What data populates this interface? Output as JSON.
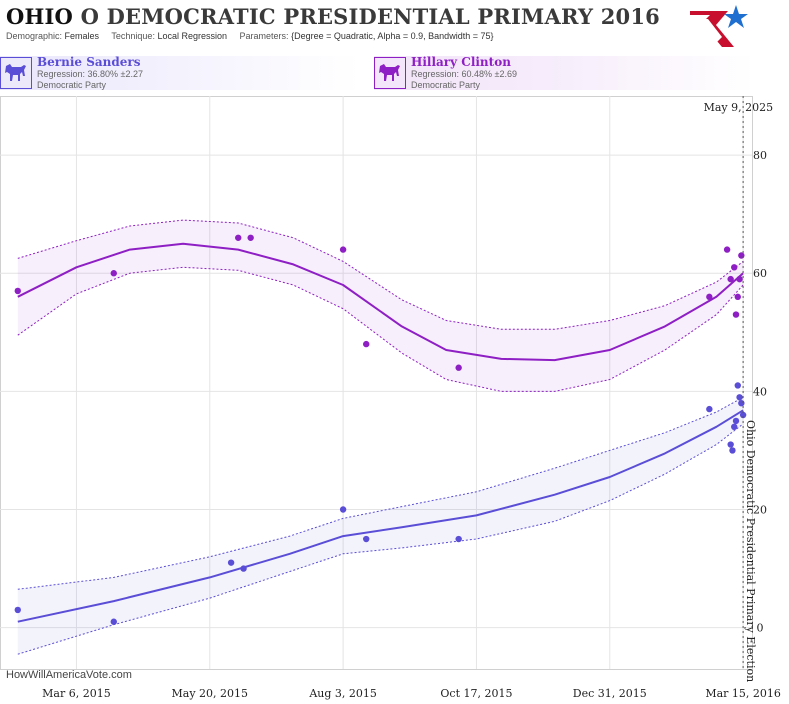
{
  "header": {
    "state": "OHIO",
    "title_rest": "O DEMOCRATIC PRESIDENTIAL PRIMARY 2016",
    "demographic_label": "Demographic:",
    "demographic_value": "Females",
    "technique_label": "Technique:",
    "technique_value": "Local Regression",
    "parameters_label": "Parameters:",
    "parameters_value": "{Degree = Quadratic, Alpha = 0.9, Bandwidth = 75}"
  },
  "logo": {
    "icon": "star-flag-logo-icon",
    "colors": [
      "#c8102e",
      "#1f6fd1"
    ]
  },
  "candidates": [
    {
      "name": "Bernie Sanders",
      "regression": "Regression: 36.80% ±2.27",
      "party": "Democratic Party",
      "color": "#5b4ed6",
      "icon": "donkey-icon"
    },
    {
      "name": "Hillary Clinton",
      "regression": "Regression: 60.48% ±2.69",
      "party": "Democratic Party",
      "color": "#8e1fc4",
      "icon": "donkey-icon"
    }
  ],
  "watermark": "HowWillAmericaVote.com",
  "chart_data": {
    "type": "scatter",
    "x_type": "date",
    "xlim": [
      "2015-01-22",
      "2016-03-20"
    ],
    "ylim": [
      -7,
      90
    ],
    "x_ticks": [
      {
        "date": "2015-03-06",
        "label": "Mar 6, 2015"
      },
      {
        "date": "2015-05-20",
        "label": "May 20, 2015"
      },
      {
        "date": "2015-08-03",
        "label": "Aug 3, 2015"
      },
      {
        "date": "2015-10-17",
        "label": "Oct 17, 2015"
      },
      {
        "date": "2015-12-31",
        "label": "Dec 31, 2015"
      },
      {
        "date": "2016-03-15",
        "label": "Mar 15, 2016"
      }
    ],
    "y_ticks": [
      0,
      20,
      40,
      60,
      80
    ],
    "grid": true,
    "annotations": {
      "election_date": "2016-03-15",
      "election_label": "Ohio Democratic Presidential Primary Election",
      "today_label": "May 9, 2025"
    },
    "series": [
      {
        "name": "Hillary Clinton",
        "color": "#8e1fc4",
        "points": [
          {
            "x": "2015-02-01",
            "y": 57
          },
          {
            "x": "2015-03-27",
            "y": 60
          },
          {
            "x": "2015-06-05",
            "y": 66
          },
          {
            "x": "2015-06-12",
            "y": 66
          },
          {
            "x": "2015-08-03",
            "y": 64
          },
          {
            "x": "2015-08-16",
            "y": 48
          },
          {
            "x": "2015-10-07",
            "y": 44
          },
          {
            "x": "2016-02-25",
            "y": 56
          },
          {
            "x": "2016-03-06",
            "y": 64
          },
          {
            "x": "2016-03-08",
            "y": 59
          },
          {
            "x": "2016-03-10",
            "y": 61
          },
          {
            "x": "2016-03-11",
            "y": 53
          },
          {
            "x": "2016-03-12",
            "y": 56
          },
          {
            "x": "2016-03-13",
            "y": 59
          },
          {
            "x": "2016-03-14",
            "y": 63
          }
        ],
        "trend": [
          {
            "x": "2015-02-01",
            "y": 56
          },
          {
            "x": "2015-03-06",
            "y": 61
          },
          {
            "x": "2015-04-05",
            "y": 64
          },
          {
            "x": "2015-05-05",
            "y": 65
          },
          {
            "x": "2015-06-05",
            "y": 64
          },
          {
            "x": "2015-07-06",
            "y": 61.5
          },
          {
            "x": "2015-08-03",
            "y": 58
          },
          {
            "x": "2015-09-05",
            "y": 51
          },
          {
            "x": "2015-09-30",
            "y": 47
          },
          {
            "x": "2015-10-31",
            "y": 45.5
          },
          {
            "x": "2015-11-30",
            "y": 45.3
          },
          {
            "x": "2015-12-31",
            "y": 47
          },
          {
            "x": "2016-01-31",
            "y": 51
          },
          {
            "x": "2016-02-29",
            "y": 56
          },
          {
            "x": "2016-03-15",
            "y": 60
          }
        ],
        "upper": [
          {
            "x": "2015-02-01",
            "y": 62.5
          },
          {
            "x": "2015-03-06",
            "y": 65.5
          },
          {
            "x": "2015-04-05",
            "y": 68
          },
          {
            "x": "2015-05-05",
            "y": 69
          },
          {
            "x": "2015-06-05",
            "y": 68.5
          },
          {
            "x": "2015-07-06",
            "y": 66
          },
          {
            "x": "2015-08-03",
            "y": 62
          },
          {
            "x": "2015-09-05",
            "y": 55.5
          },
          {
            "x": "2015-09-30",
            "y": 52
          },
          {
            "x": "2015-10-31",
            "y": 50.5
          },
          {
            "x": "2015-11-30",
            "y": 50.5
          },
          {
            "x": "2015-12-31",
            "y": 52
          },
          {
            "x": "2016-01-31",
            "y": 54.5
          },
          {
            "x": "2016-02-29",
            "y": 58.5
          },
          {
            "x": "2016-03-15",
            "y": 62
          }
        ],
        "lower": [
          {
            "x": "2015-02-01",
            "y": 49.5
          },
          {
            "x": "2015-03-06",
            "y": 56.5
          },
          {
            "x": "2015-04-05",
            "y": 60
          },
          {
            "x": "2015-05-05",
            "y": 61
          },
          {
            "x": "2015-06-05",
            "y": 60.5
          },
          {
            "x": "2015-07-06",
            "y": 58
          },
          {
            "x": "2015-08-03",
            "y": 54
          },
          {
            "x": "2015-09-05",
            "y": 46.5
          },
          {
            "x": "2015-09-30",
            "y": 42
          },
          {
            "x": "2015-10-31",
            "y": 40
          },
          {
            "x": "2015-11-30",
            "y": 40
          },
          {
            "x": "2015-12-31",
            "y": 42
          },
          {
            "x": "2016-01-31",
            "y": 47
          },
          {
            "x": "2016-02-29",
            "y": 53
          },
          {
            "x": "2016-03-15",
            "y": 58
          }
        ]
      },
      {
        "name": "Bernie Sanders",
        "color": "#5b4ed6",
        "points": [
          {
            "x": "2015-02-01",
            "y": 3
          },
          {
            "x": "2015-03-27",
            "y": 1
          },
          {
            "x": "2015-06-01",
            "y": 11
          },
          {
            "x": "2015-06-08",
            "y": 10
          },
          {
            "x": "2015-08-03",
            "y": 20
          },
          {
            "x": "2015-08-16",
            "y": 15
          },
          {
            "x": "2015-10-07",
            "y": 15
          },
          {
            "x": "2016-02-25",
            "y": 37
          },
          {
            "x": "2016-03-08",
            "y": 31
          },
          {
            "x": "2016-03-09",
            "y": 30
          },
          {
            "x": "2016-03-10",
            "y": 34
          },
          {
            "x": "2016-03-11",
            "y": 35
          },
          {
            "x": "2016-03-12",
            "y": 41
          },
          {
            "x": "2016-03-13",
            "y": 39
          },
          {
            "x": "2016-03-14",
            "y": 38
          },
          {
            "x": "2016-03-15",
            "y": 36
          }
        ],
        "trend": [
          {
            "x": "2015-02-01",
            "y": 1
          },
          {
            "x": "2015-03-27",
            "y": 4.5
          },
          {
            "x": "2015-05-20",
            "y": 8.5
          },
          {
            "x": "2015-07-04",
            "y": 12.5
          },
          {
            "x": "2015-08-03",
            "y": 15.5
          },
          {
            "x": "2015-09-05",
            "y": 17
          },
          {
            "x": "2015-10-17",
            "y": 19
          },
          {
            "x": "2015-11-30",
            "y": 22.5
          },
          {
            "x": "2015-12-31",
            "y": 25.5
          },
          {
            "x": "2016-01-31",
            "y": 29.5
          },
          {
            "x": "2016-02-29",
            "y": 34
          },
          {
            "x": "2016-03-15",
            "y": 36.8
          }
        ],
        "upper": [
          {
            "x": "2015-02-01",
            "y": 6.5
          },
          {
            "x": "2015-03-27",
            "y": 8.5
          },
          {
            "x": "2015-05-20",
            "y": 12
          },
          {
            "x": "2015-07-04",
            "y": 15.5
          },
          {
            "x": "2015-08-03",
            "y": 18.5
          },
          {
            "x": "2015-09-05",
            "y": 20.5
          },
          {
            "x": "2015-10-17",
            "y": 23
          },
          {
            "x": "2015-11-30",
            "y": 27
          },
          {
            "x": "2015-12-31",
            "y": 30
          },
          {
            "x": "2016-01-31",
            "y": 33
          },
          {
            "x": "2016-02-29",
            "y": 36.5
          },
          {
            "x": "2016-03-15",
            "y": 39
          }
        ],
        "lower": [
          {
            "x": "2015-02-01",
            "y": -4.5
          },
          {
            "x": "2015-03-27",
            "y": 0.5
          },
          {
            "x": "2015-05-20",
            "y": 5
          },
          {
            "x": "2015-07-04",
            "y": 9.5
          },
          {
            "x": "2015-08-03",
            "y": 12.5
          },
          {
            "x": "2015-09-05",
            "y": 13.5
          },
          {
            "x": "2015-10-17",
            "y": 15
          },
          {
            "x": "2015-11-30",
            "y": 18
          },
          {
            "x": "2015-12-31",
            "y": 21.5
          },
          {
            "x": "2016-01-31",
            "y": 26
          },
          {
            "x": "2016-02-29",
            "y": 31
          },
          {
            "x": "2016-03-15",
            "y": 34.5
          }
        ]
      }
    ]
  }
}
